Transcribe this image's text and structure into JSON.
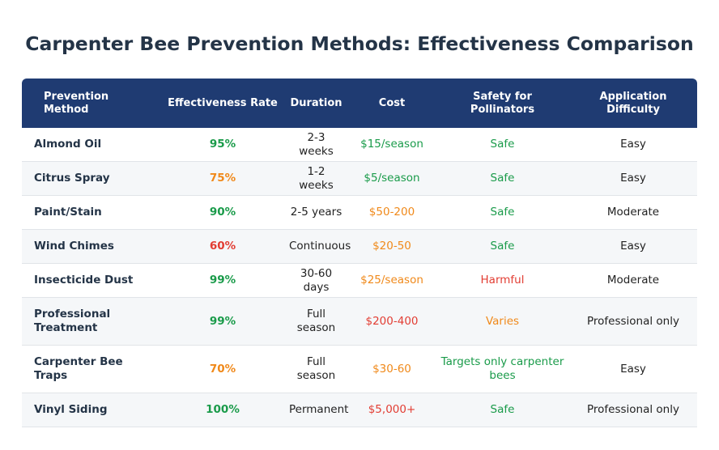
{
  "title": "Carpenter Bee Prevention Methods: Effectiveness Comparison",
  "columns": [
    "Prevention Method",
    "Effectiveness Rate",
    "Duration",
    "Cost",
    "Safety for Pollinators",
    "Application Difficulty"
  ],
  "colors": {
    "header_bg": "#1f3b72",
    "title": "#243447",
    "good": "#1a9b4a",
    "medium": "#f0891a",
    "bad": "#e23d33"
  },
  "rows": [
    {
      "method": "Almond Oil",
      "effectiveness": "95%",
      "duration": "2-3 weeks",
      "cost": "$15/season",
      "safety": "Safe",
      "difficulty": "Easy"
    },
    {
      "method": "Citrus Spray",
      "effectiveness": "75%",
      "duration": "1-2 weeks",
      "cost": "$5/season",
      "safety": "Safe",
      "difficulty": "Easy"
    },
    {
      "method": "Paint/Stain",
      "effectiveness": "90%",
      "duration": "2-5 years",
      "cost": "$50-200",
      "safety": "Safe",
      "difficulty": "Moderate"
    },
    {
      "method": "Wind Chimes",
      "effectiveness": "60%",
      "duration": "Continuous",
      "cost": "$20-50",
      "safety": "Safe",
      "difficulty": "Easy"
    },
    {
      "method": "Insecticide Dust",
      "effectiveness": "99%",
      "duration": "30-60 days",
      "cost": "$25/season",
      "safety": "Harmful",
      "difficulty": "Moderate"
    },
    {
      "method": "Professional Treatment",
      "effectiveness": "99%",
      "duration": "Full season",
      "cost": "$200-400",
      "safety": "Varies",
      "difficulty": "Professional only"
    },
    {
      "method": "Carpenter Bee Traps",
      "effectiveness": "70%",
      "duration": "Full season",
      "cost": "$30-60",
      "safety": "Targets only carpenter bees",
      "difficulty": "Easy"
    },
    {
      "method": "Vinyl Siding",
      "effectiveness": "100%",
      "duration": "Permanent",
      "cost": "$5,000+",
      "safety": "Safe",
      "difficulty": "Professional only"
    }
  ]
}
